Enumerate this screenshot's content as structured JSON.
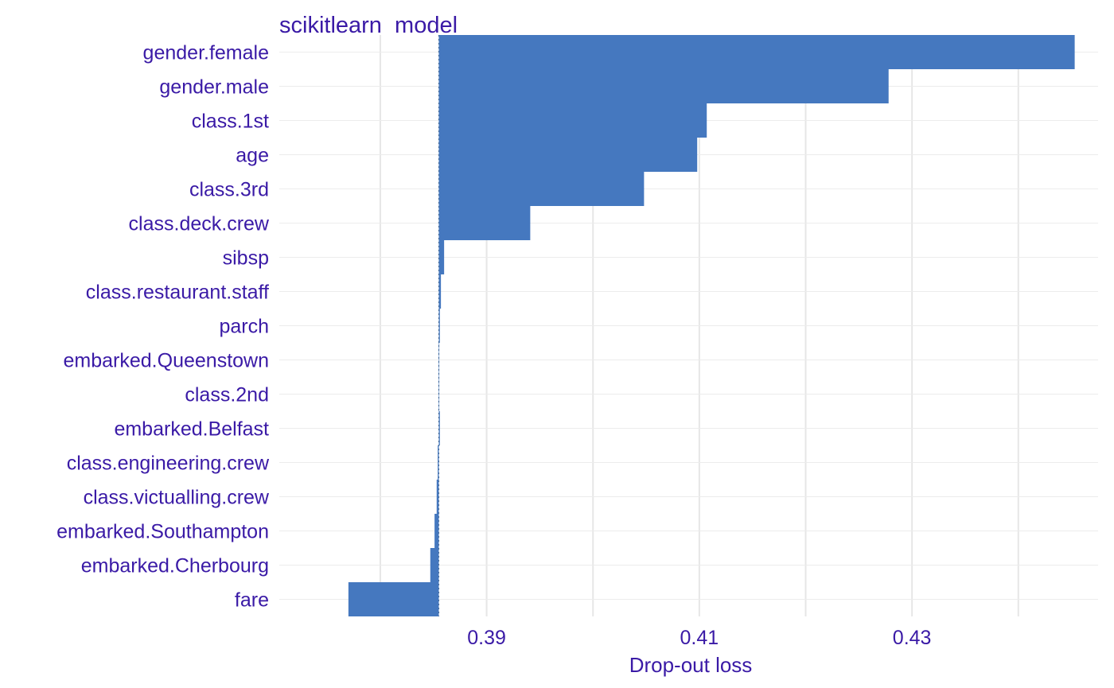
{
  "chart_data": {
    "type": "bar",
    "orientation": "horizontal",
    "title": "scikitlearn  model",
    "xlabel": "Drop-out loss",
    "ylabel": "",
    "baseline": 0.3855,
    "xlim": [
      0.3705,
      0.4475
    ],
    "xticks": [
      0.39,
      0.41,
      0.43
    ],
    "xtick_labels": [
      "0.39",
      "0.41",
      "0.43"
    ],
    "grid": true,
    "bar_color": "#4578bf",
    "text_color": "#3a1aa6",
    "categories": [
      "gender.female",
      "gender.male",
      "class.1st",
      "age",
      "class.3rd",
      "class.deck.crew",
      "sibsp",
      "class.restaurant.staff",
      "parch",
      "embarked.Queenstown",
      "class.2nd",
      "embarked.Belfast",
      "class.engineering.crew",
      "class.victualling.crew",
      "embarked.Southampton",
      "embarked.Cherbourg",
      "fare"
    ],
    "values": [
      0.4453,
      0.4278,
      0.4107,
      0.4098,
      0.4048,
      0.3941,
      0.386,
      0.3857,
      0.3856,
      0.3855,
      0.3855,
      0.3856,
      0.3854,
      0.3853,
      0.3851,
      0.3847,
      0.377
    ]
  }
}
